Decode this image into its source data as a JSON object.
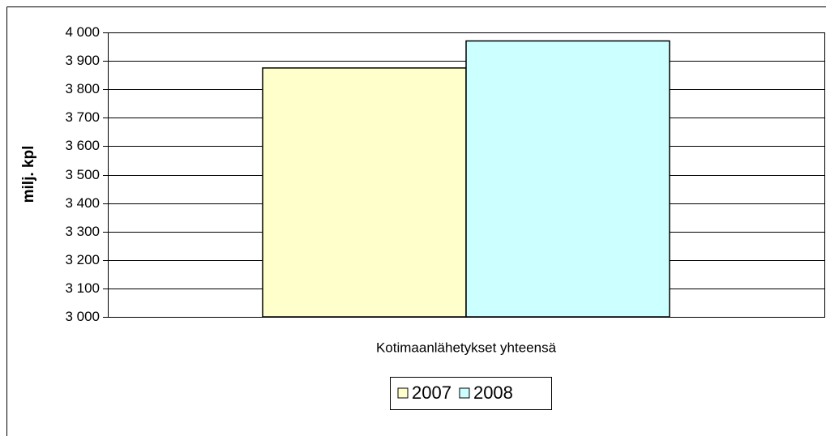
{
  "chart_data": {
    "type": "bar",
    "y_label": "milj. kpl",
    "categories": [
      "Kotimaanlähetykset yhteensä"
    ],
    "series": [
      {
        "name": "2007",
        "color": "#ffffcc",
        "values": [
          3875
        ]
      },
      {
        "name": "2008",
        "color": "#ccffff",
        "values": [
          3970
        ]
      }
    ],
    "ylim": [
      3000,
      4000
    ],
    "yticks": [
      {
        "value": 3000,
        "label": "3 000"
      },
      {
        "value": 3100,
        "label": "3 100"
      },
      {
        "value": 3200,
        "label": "3 200"
      },
      {
        "value": 3300,
        "label": "3 300"
      },
      {
        "value": 3400,
        "label": "3 400"
      },
      {
        "value": 3500,
        "label": "3 500"
      },
      {
        "value": 3600,
        "label": "3 600"
      },
      {
        "value": 3700,
        "label": "3 700"
      },
      {
        "value": 3800,
        "label": "3 800"
      },
      {
        "value": 3900,
        "label": "3 900"
      },
      {
        "value": 4000,
        "label": "4 000"
      }
    ],
    "grid": true,
    "legend": "bottom"
  }
}
